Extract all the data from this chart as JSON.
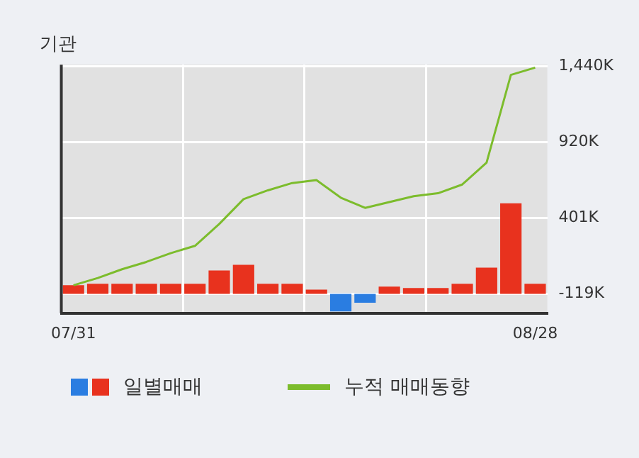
{
  "chart_data": {
    "type": "bar",
    "title": "기관",
    "categories": [
      "07/31",
      null,
      null,
      null,
      null,
      null,
      null,
      null,
      null,
      null,
      null,
      null,
      null,
      null,
      null,
      null,
      null,
      null,
      null,
      "08/28"
    ],
    "series": [
      {
        "name": "일별매매",
        "base": [
          -119,
          -119,
          -119,
          -119,
          -119,
          -119,
          -119,
          -119,
          -119,
          -119,
          -119,
          -119,
          -119,
          -119,
          -119,
          -119,
          -119,
          -119,
          -119,
          -119
        ],
        "color": "#e8321e",
        "colors": [
          "#e8321e",
          "#e8321e",
          "#e8321e",
          "#e8321e",
          "#e8321e",
          "#e8321e",
          "#e8321e",
          "#e8321e",
          "#e8321e",
          "#e8321e",
          "#e8321e",
          "#2a7de1",
          "#2a7de1",
          "#e8321e",
          "#e8321e",
          "#e8321e",
          "#e8321e",
          "#e8321e",
          "#e8321e",
          "#e8321e"
        ],
        "values": [
          60,
          70,
          70,
          70,
          70,
          70,
          160,
          200,
          70,
          70,
          30,
          -120,
          -60,
          50,
          40,
          40,
          70,
          180,
          620,
          70
        ]
      },
      {
        "name": "누적 매매동향",
        "type": "line",
        "color": "#7cbc2c",
        "values": [
          -60,
          -10,
          50,
          100,
          160,
          210,
          360,
          530,
          590,
          640,
          660,
          540,
          470,
          510,
          550,
          570,
          630,
          780,
          1380,
          1430
        ]
      }
    ],
    "ylim": [
      -250,
      1450
    ],
    "yticks": [
      {
        "value": -119,
        "label": "-119K"
      },
      {
        "value": 401,
        "label": "401K"
      },
      {
        "value": 920,
        "label": "920K"
      },
      {
        "value": 1440,
        "label": "1,440K"
      }
    ],
    "grid": true,
    "legend": "bottom",
    "marker": "none"
  }
}
